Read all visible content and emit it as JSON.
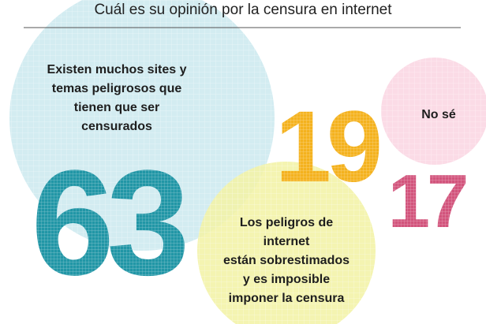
{
  "title": "Cuál es su opinión por la censura en internet",
  "chart_data": {
    "type": "bubble",
    "title": "Cuál es su opinión por la censura en internet",
    "unit": "%",
    "items": [
      {
        "value": 63,
        "display": "63",
        "label_lines": [
          "Existen muchos sites y",
          "temas peligrosos que",
          "tienen que ser",
          "censurados"
        ],
        "circle_color": "#cde9ef",
        "number_color": "#2196a6"
      },
      {
        "value": 19,
        "display": "19",
        "label_lines": [
          "Los peligros de",
          "internet",
          "están sobrestimados",
          "y es imposible",
          "imponer la censura"
        ],
        "circle_color": "#f3f2a6",
        "number_color": "#f4b21e"
      },
      {
        "value": 17,
        "display": "17",
        "label_lines": [
          "No sé"
        ],
        "circle_color": "#fbd6e3",
        "number_color": "#d2547c"
      }
    ]
  }
}
